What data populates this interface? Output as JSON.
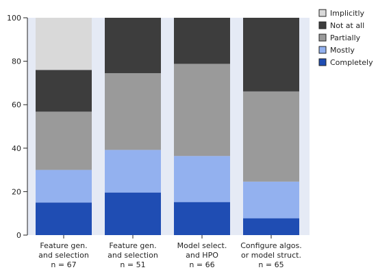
{
  "chart_data": {
    "type": "bar",
    "stacked": true,
    "title": "",
    "xlabel": "",
    "ylabel": "",
    "ylim": [
      0,
      100
    ],
    "yticks": [
      "0",
      "20",
      "40",
      "60",
      "80",
      "100"
    ],
    "grid": false,
    "legend_position": "top-right",
    "categories": [
      [
        "Feature gen.",
        "and selection",
        "n = 67"
      ],
      [
        "Feature gen.",
        "and selection",
        "n = 51"
      ],
      [
        "Model select.",
        "and HPO",
        "n = 66"
      ],
      [
        "Configure algos.",
        "or model struct.",
        "n = 65"
      ]
    ],
    "series": [
      {
        "name": "Completely",
        "color": "#1f4db3",
        "values": [
          15,
          19.6,
          15.2,
          7.7
        ]
      },
      {
        "name": "Mostly",
        "color": "#93b1ef",
        "values": [
          15,
          19.6,
          21.2,
          16.9
        ]
      },
      {
        "name": "Partially",
        "color": "#9a9a9a",
        "values": [
          26.8,
          35.3,
          42.4,
          41.5
        ]
      },
      {
        "name": "Not at all",
        "color": "#3d3d3d",
        "values": [
          19.2,
          25.5,
          21.2,
          33.9
        ]
      },
      {
        "name": "Implicitly",
        "color": "#d9d9d9",
        "values": [
          24,
          0,
          0,
          0
        ]
      }
    ],
    "legend_order": [
      "Implicitly",
      "Not at all",
      "Partially",
      "Mostly",
      "Completely"
    ],
    "plot_background": "#e5eaf5"
  }
}
